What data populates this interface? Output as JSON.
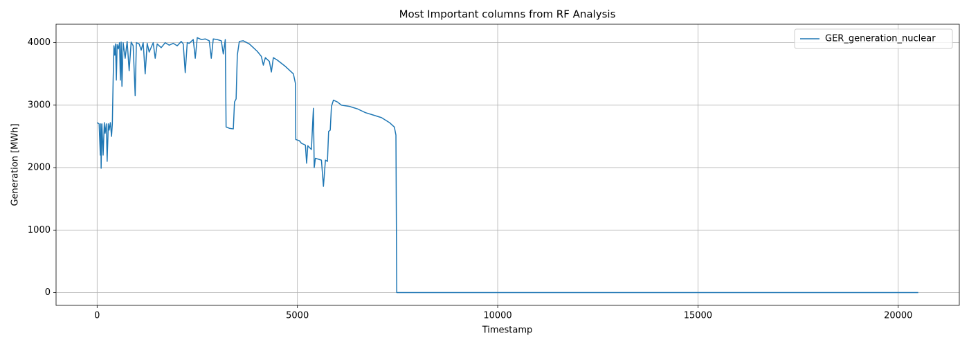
{
  "chart_data": {
    "type": "line",
    "title": "Most Important columns from RF Analysis",
    "xlabel": "Timestamp",
    "ylabel": "Generation [MWh]",
    "x": [
      0,
      50,
      80,
      90,
      100,
      120,
      150,
      180,
      200,
      230,
      250,
      280,
      300,
      330,
      360,
      380,
      400,
      420,
      440,
      460,
      480,
      500,
      530,
      560,
      580,
      600,
      620,
      650,
      700,
      750,
      800,
      850,
      900,
      950,
      980,
      1050,
      1100,
      1150,
      1200,
      1250,
      1300,
      1400,
      1450,
      1500,
      1600,
      1700,
      1800,
      1900,
      2000,
      2100,
      2150,
      2200,
      2250,
      2300,
      2400,
      2450,
      2500,
      2600,
      2700,
      2800,
      2850,
      2900,
      3000,
      3100,
      3150,
      3200,
      3220,
      3300,
      3400,
      3430,
      3470,
      3500,
      3550,
      3650,
      3800,
      3900,
      4000,
      4100,
      4150,
      4200,
      4300,
      4350,
      4400,
      4500,
      4600,
      4700,
      4800,
      4900,
      4950,
      4960,
      5050,
      5100,
      5200,
      5230,
      5260,
      5350,
      5380,
      5400,
      5420,
      5450,
      5600,
      5650,
      5700,
      5750,
      5780,
      5820,
      5850,
      5900,
      6000,
      6100,
      6300,
      6500,
      6700,
      6900,
      7100,
      7300,
      7420,
      7460,
      7480,
      20500
    ],
    "series": [
      {
        "name": "GER_generation_nuclear",
        "color": "#1f77b4",
        "values": [
          2720,
          2700,
          2200,
          2700,
          1990,
          2700,
          2200,
          2720,
          2550,
          2700,
          2100,
          2700,
          2600,
          2720,
          2500,
          2700,
          3400,
          3950,
          3800,
          3980,
          3400,
          3970,
          3900,
          4000,
          3400,
          4010,
          3300,
          4000,
          3750,
          4020,
          3550,
          4010,
          3950,
          3150,
          4000,
          3980,
          3880,
          4000,
          3500,
          3990,
          3850,
          4000,
          3750,
          3980,
          3920,
          4000,
          3960,
          3990,
          3950,
          4020,
          3980,
          3520,
          4000,
          3990,
          4050,
          3750,
          4080,
          4050,
          4060,
          4030,
          3750,
          4060,
          4050,
          4030,
          3820,
          4050,
          2650,
          2630,
          2620,
          3050,
          3100,
          3800,
          4020,
          4030,
          3980,
          3920,
          3860,
          3780,
          3640,
          3760,
          3700,
          3530,
          3760,
          3720,
          3670,
          3620,
          3560,
          3500,
          3350,
          2450,
          2430,
          2390,
          2360,
          2070,
          2350,
          2290,
          2700,
          2950,
          2000,
          2150,
          2120,
          1700,
          2120,
          2100,
          2580,
          2600,
          2980,
          3080,
          3050,
          3000,
          2980,
          2940,
          2880,
          2840,
          2800,
          2720,
          2650,
          2520,
          0,
          0
        ]
      }
    ],
    "xlim": [
      -1025,
      21525
    ],
    "xticks": [
      0,
      5000,
      10000,
      15000,
      20000
    ],
    "ylim": [
      -205,
      4295
    ],
    "yticks": [
      0,
      1000,
      2000,
      3000,
      4000
    ],
    "grid": true,
    "legend": "upper right"
  }
}
